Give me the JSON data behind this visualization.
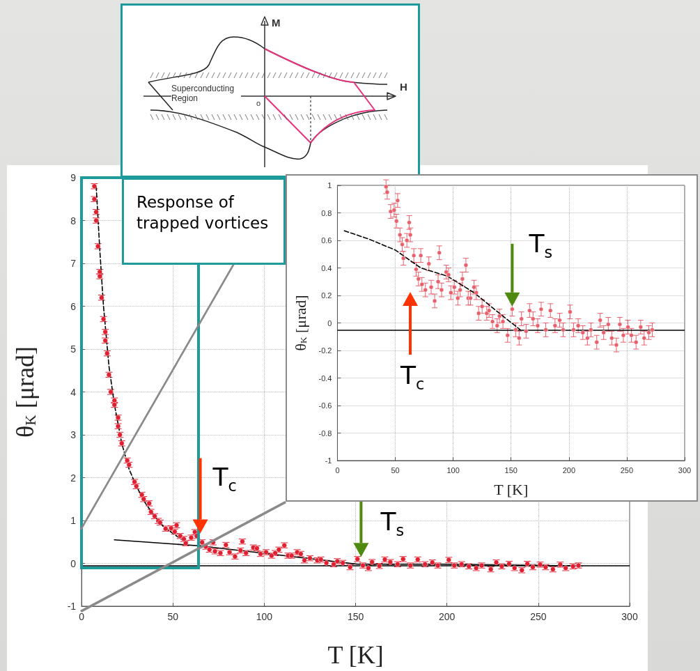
{
  "chart_data": [
    {
      "type": "scatter",
      "xlabel": "T [K]",
      "ylabel": "θ$_{K}$ [μrad]",
      "xlim": [
        0,
        300
      ],
      "xticks": [
        0,
        50,
        100,
        150,
        200,
        250,
        300
      ],
      "ylim": [
        -1,
        9
      ],
      "yticks": [
        -1,
        0,
        1,
        2,
        3,
        4,
        5,
        6,
        7,
        8,
        9
      ],
      "grid": true,
      "series": [
        {
          "type": "scatter",
          "marker": "circle",
          "color": "#e02030",
          "x": [
            7,
            7,
            8,
            8,
            9,
            10,
            10,
            11,
            12,
            13,
            13,
            14,
            15,
            16,
            18,
            18,
            20,
            20,
            21,
            22,
            25,
            26,
            29,
            30,
            33,
            34,
            37,
            38,
            40,
            42,
            43,
            46,
            49,
            51,
            52,
            54,
            56,
            57,
            60,
            62,
            63,
            66,
            68,
            70,
            72,
            73,
            76,
            79,
            81,
            84,
            87,
            88,
            90,
            94,
            96,
            98,
            101,
            104,
            106,
            108,
            111,
            113,
            115,
            118,
            120,
            122,
            125,
            129,
            131,
            134,
            138,
            140,
            143,
            147,
            151,
            154,
            157,
            159,
            163,
            166,
            169,
            173,
            176,
            180,
            184,
            188,
            192,
            195,
            201,
            204,
            208,
            212,
            216,
            219,
            224,
            227,
            230,
            234,
            237,
            241,
            244,
            247,
            251,
            254,
            258,
            262,
            265,
            269,
            272
          ],
          "values": [
            8.8,
            8.5,
            8.2,
            8.0,
            7.4,
            6.8,
            6.7,
            6.2,
            5.7,
            5.4,
            5.2,
            4.9,
            4.4,
            4.0,
            3.8,
            3.7,
            3.4,
            3.2,
            3.0,
            2.8,
            2.4,
            2.3,
            1.9,
            1.8,
            1.6,
            1.5,
            1.4,
            1.2,
            1.1,
            0.99,
            0.95,
            0.81,
            0.82,
            0.74,
            0.89,
            0.64,
            0.57,
            0.47,
            0.6,
            0.73,
            0.64,
            0.49,
            0.39,
            0.32,
            0.49,
            0.28,
            0.24,
            0.43,
            0.26,
            0.16,
            0.3,
            0.51,
            0.24,
            0.37,
            0.35,
            0.22,
            0.26,
            0.18,
            0.24,
            0.32,
            0.42,
            0.18,
            0.18,
            0.26,
            0.22,
            0.07,
            0.12,
            0.07,
            0.09,
            0.01,
            -0.02,
            0.05,
            0.01,
            -0.09,
            0.1,
            -0.05,
            -0.11,
            0.03,
            -0.06,
            0.09,
            0.03,
            -0.02,
            0.1,
            -0.05,
            0.09,
            -0.02,
            0.02,
            -0.05,
            0.08,
            -0.05,
            -0.02,
            -0.07,
            -0.11,
            -0.05,
            -0.14,
            0.02,
            -0.07,
            -0.01,
            -0.11,
            -0.16,
            -0.01,
            -0.09,
            -0.03,
            -0.09,
            -0.14,
            -0.03,
            -0.11,
            -0.07,
            -0.05
          ],
          "errors": [
            0.06,
            0.06,
            0.06,
            0.06,
            0.06,
            0.06,
            0.06,
            0.06,
            0.06,
            0.06,
            0.06,
            0.06,
            0.06,
            0.06,
            0.06,
            0.06,
            0.06,
            0.06,
            0.06,
            0.06,
            0.06,
            0.06,
            0.06,
            0.06,
            0.06,
            0.06,
            0.06,
            0.06,
            0.06,
            0.06,
            0.06,
            0.06,
            0.06,
            0.06,
            0.06,
            0.06,
            0.06,
            0.06,
            0.06,
            0.06,
            0.06,
            0.06,
            0.06,
            0.06,
            0.06,
            0.06,
            0.06,
            0.06,
            0.06,
            0.06,
            0.06,
            0.06,
            0.06,
            0.06,
            0.06,
            0.06,
            0.06,
            0.06,
            0.06,
            0.06,
            0.06,
            0.06,
            0.06,
            0.06,
            0.06,
            0.06,
            0.06,
            0.06,
            0.06,
            0.06,
            0.06,
            0.06,
            0.06,
            0.06,
            0.06,
            0.06,
            0.06,
            0.06,
            0.06,
            0.06,
            0.06,
            0.06,
            0.06,
            0.06,
            0.06,
            0.06,
            0.06,
            0.06,
            0.06,
            0.06,
            0.06,
            0.06,
            0.06,
            0.06,
            0.06,
            0.06,
            0.06,
            0.06,
            0.06,
            0.06,
            0.06,
            0.06,
            0.06,
            0.06,
            0.06,
            0.06,
            0.06,
            0.06,
            0.06
          ]
        },
        {
          "type": "line",
          "marker": "none",
          "line_style": "dashed",
          "color": "#000000",
          "x": [
            8,
            10,
            12,
            15,
            18,
            22,
            26,
            30,
            35,
            40,
            45,
            50,
            55,
            58
          ],
          "values": [
            8.8,
            7.3,
            6.0,
            4.6,
            3.7,
            2.8,
            2.2,
            1.8,
            1.4,
            1.1,
            0.85,
            0.7,
            0.55,
            0.5
          ]
        },
        {
          "type": "line",
          "marker": "none",
          "line_style": "solid",
          "color": "#000000",
          "x": [
            18,
            64,
            99,
            151,
            195,
            274
          ],
          "values": [
            0.55,
            0.41,
            0.24,
            -0.02,
            -0.02,
            -0.06
          ]
        }
      ],
      "ref_lines": [
        {
          "axis": "y",
          "value": -0.05,
          "color": "#000000"
        }
      ],
      "annotations": [
        "Response of trapped vortices",
        {
          "text": "T$_{c}$",
          "x": 65,
          "y": 0.7
        },
        {
          "text": "T$_{s}$",
          "x": 153,
          "y": 0.15
        }
      ]
    },
    {
      "type": "scatter",
      "xlabel": "T [K]",
      "ylabel": "θ$_{K}$ [μrad]",
      "xlim": [
        0,
        300
      ],
      "xticks": [
        0,
        50,
        100,
        150,
        200,
        250,
        300
      ],
      "ylim": [
        -1,
        1
      ],
      "yticks": [
        -1,
        -0.8,
        -0.6,
        -0.4,
        -0.2,
        0,
        0.2,
        0.4,
        0.6,
        0.8,
        1
      ],
      "grid": true,
      "series": [
        {
          "type": "scatter",
          "marker": "circle",
          "color": "#e8606c",
          "x": [
            42,
            43,
            46,
            49,
            51,
            52,
            54,
            56,
            57,
            60,
            62,
            63,
            66,
            68,
            70,
            72,
            73,
            76,
            79,
            81,
            84,
            87,
            88,
            90,
            94,
            96,
            98,
            101,
            104,
            106,
            108,
            111,
            113,
            115,
            118,
            120,
            122,
            125,
            129,
            131,
            134,
            138,
            140,
            143,
            147,
            151,
            154,
            157,
            159,
            163,
            166,
            169,
            173,
            176,
            180,
            184,
            188,
            192,
            195,
            201,
            204,
            208,
            212,
            216,
            219,
            224,
            227,
            230,
            234,
            237,
            241,
            244,
            247,
            251,
            254,
            258,
            262,
            265,
            269,
            272
          ],
          "values": [
            0.99,
            0.95,
            0.81,
            0.82,
            0.74,
            0.89,
            0.64,
            0.57,
            0.47,
            0.6,
            0.73,
            0.64,
            0.49,
            0.39,
            0.32,
            0.49,
            0.28,
            0.24,
            0.43,
            0.26,
            0.16,
            0.3,
            0.51,
            0.24,
            0.37,
            0.35,
            0.22,
            0.26,
            0.18,
            0.24,
            0.32,
            0.42,
            0.18,
            0.18,
            0.26,
            0.22,
            0.07,
            0.12,
            0.07,
            0.09,
            0.01,
            -0.02,
            0.05,
            0.01,
            -0.09,
            0.1,
            -0.05,
            -0.11,
            0.03,
            -0.06,
            0.09,
            0.03,
            -0.02,
            0.1,
            -0.05,
            0.09,
            -0.02,
            0.02,
            -0.05,
            0.08,
            -0.05,
            -0.02,
            -0.07,
            -0.11,
            -0.05,
            -0.14,
            0.02,
            -0.07,
            -0.01,
            -0.11,
            -0.16,
            -0.01,
            -0.09,
            -0.03,
            -0.09,
            -0.14,
            -0.03,
            -0.11,
            -0.07,
            -0.05
          ],
          "errors": [
            0.05,
            0.05,
            0.05,
            0.05,
            0.05,
            0.05,
            0.05,
            0.05,
            0.05,
            0.05,
            0.05,
            0.05,
            0.05,
            0.05,
            0.05,
            0.05,
            0.05,
            0.05,
            0.05,
            0.05,
            0.05,
            0.05,
            0.05,
            0.05,
            0.05,
            0.05,
            0.05,
            0.05,
            0.05,
            0.05,
            0.05,
            0.05,
            0.05,
            0.05,
            0.05,
            0.05,
            0.05,
            0.05,
            0.05,
            0.05,
            0.05,
            0.05,
            0.05,
            0.05,
            0.05,
            0.05,
            0.05,
            0.05,
            0.05,
            0.05,
            0.05,
            0.05,
            0.05,
            0.05,
            0.05,
            0.05,
            0.05,
            0.05,
            0.05,
            0.05,
            0.05,
            0.05,
            0.05,
            0.05,
            0.05,
            0.05,
            0.05,
            0.05,
            0.05,
            0.05,
            0.05,
            0.05,
            0.05,
            0.05,
            0.05,
            0.05,
            0.05,
            0.05,
            0.05,
            0.05
          ]
        },
        {
          "type": "line",
          "marker": "none",
          "line_style": "dashed",
          "color": "#000000",
          "x": [
            6,
            27,
            50,
            72,
            95,
            118,
            140,
            158
          ],
          "values": [
            0.67,
            0.61,
            0.53,
            0.4,
            0.34,
            0.22,
            0.07,
            -0.05
          ]
        }
      ],
      "ref_lines": [
        {
          "axis": "y",
          "value": -0.05,
          "color": "#000000"
        }
      ],
      "annotations": [
        "T$_{c}$",
        {
          "text": "T$_{s}$",
          "x": 151,
          "y": 0.12
        }
      ]
    },
    {
      "type": "other",
      "annotations": [
        "M",
        "H",
        "Superconducting Region",
        "o"
      ]
    }
  ]
}
